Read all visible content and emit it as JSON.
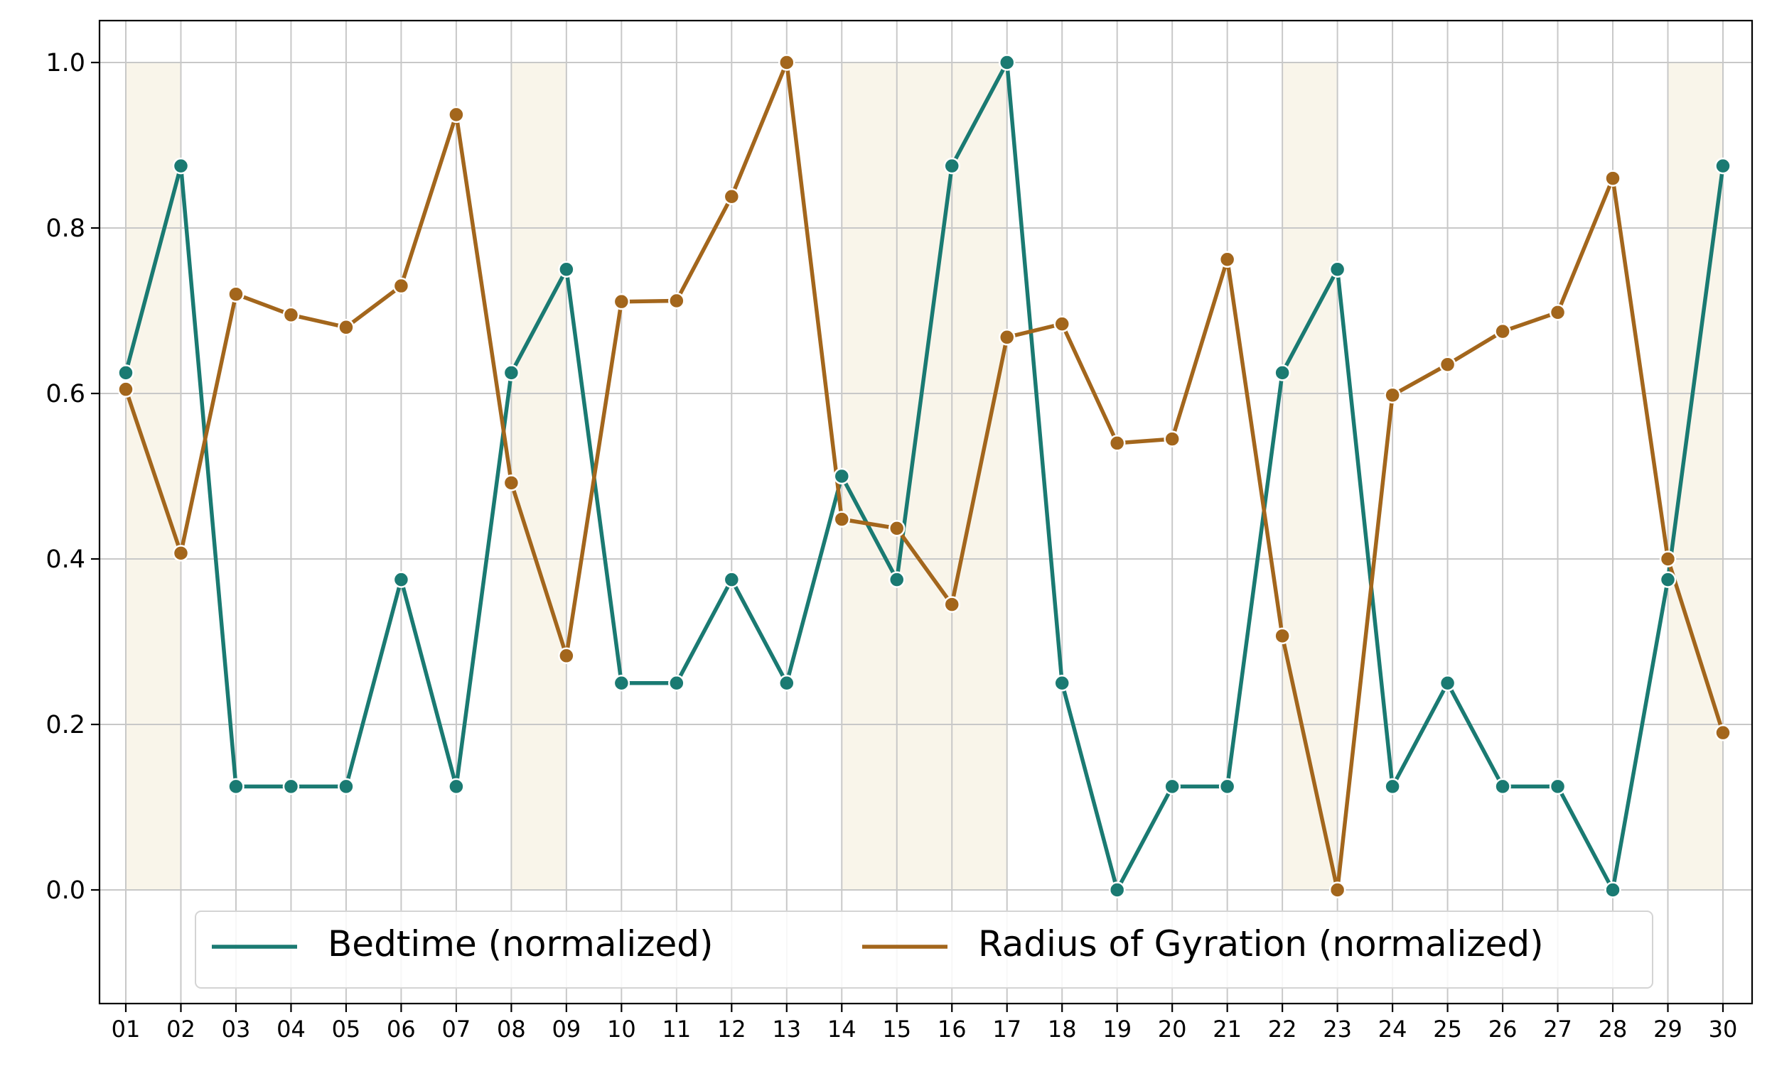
{
  "chart_data": {
    "type": "line",
    "title": "",
    "xlabel": "",
    "ylabel": "",
    "x": [
      "01",
      "02",
      "03",
      "04",
      "05",
      "06",
      "07",
      "08",
      "09",
      "10",
      "11",
      "12",
      "13",
      "14",
      "15",
      "16",
      "17",
      "18",
      "19",
      "20",
      "21",
      "22",
      "23",
      "24",
      "25",
      "26",
      "27",
      "28",
      "29",
      "30"
    ],
    "ylim": [
      -0.135,
      1.05
    ],
    "yticks": [
      "0.0",
      "0.2",
      "0.4",
      "0.6",
      "0.8",
      "1.0"
    ],
    "grid": true,
    "legend_placement": "lower center",
    "shaded_spans": [
      [
        "01",
        "02"
      ],
      [
        "08",
        "09"
      ],
      [
        "14",
        "17"
      ],
      [
        "22",
        "23"
      ],
      [
        "29",
        "30"
      ]
    ],
    "shade_color": "#f9f5ea",
    "series": [
      {
        "name": "Bedtime (normalized)",
        "color": "#1a7a72",
        "values": [
          0.625,
          0.875,
          0.125,
          0.125,
          0.125,
          0.375,
          0.125,
          0.625,
          0.75,
          0.25,
          0.25,
          0.375,
          0.25,
          0.5,
          0.375,
          0.875,
          1.0,
          0.25,
          0.0,
          0.125,
          0.125,
          0.625,
          0.75,
          0.125,
          0.25,
          0.125,
          0.125,
          0.0,
          0.375,
          0.875
        ]
      },
      {
        "name": "Radius of Gyration (normalized)",
        "color": "#a3661c",
        "values": [
          0.605,
          0.407,
          0.72,
          0.695,
          0.68,
          0.73,
          0.937,
          0.492,
          0.283,
          0.711,
          0.712,
          0.838,
          1.0,
          0.448,
          0.437,
          0.345,
          0.668,
          0.684,
          0.54,
          0.545,
          0.762,
          0.307,
          0.0,
          0.598,
          0.635,
          0.675,
          0.698,
          0.86,
          0.4,
          0.19
        ]
      }
    ]
  }
}
